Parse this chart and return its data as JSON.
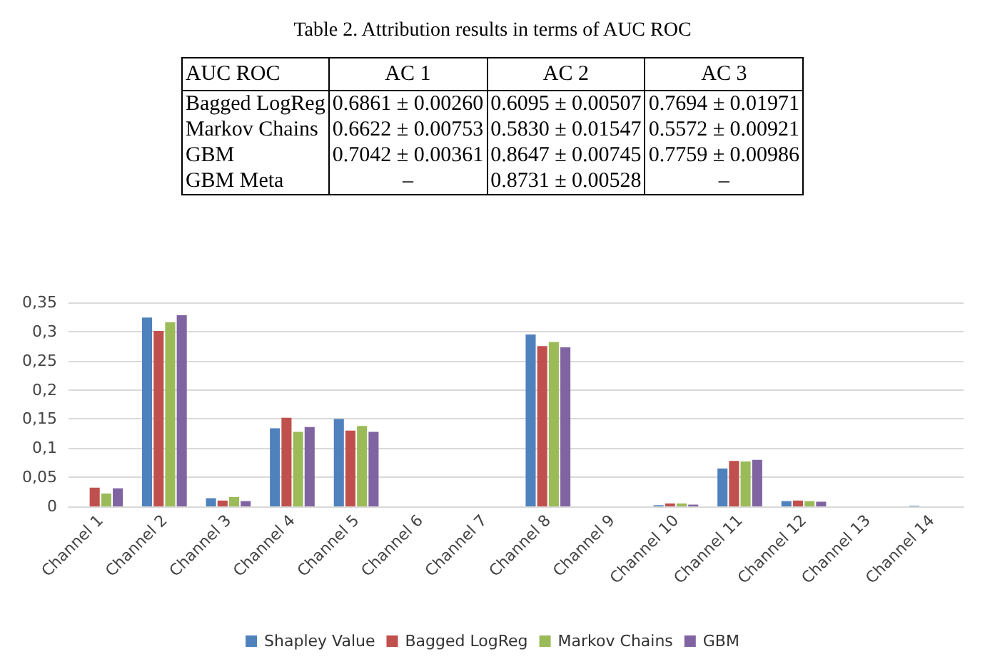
{
  "chart_data": [
    {
      "type": "other",
      "title": "Table 2. Attribution results in terms of AUC ROC",
      "ylabel": "AUC ROC",
      "categories": [
        "AC 1",
        "AC 2",
        "AC 3"
      ],
      "y_categories": [
        "Bagged LogReg",
        "Markov Chains",
        "GBM",
        "GBM Meta"
      ],
      "cell_labels": [
        [
          "0.6861 ± 0.00260",
          "0.6095 ± 0.00507",
          "0.7694 ± 0.01971"
        ],
        [
          "0.6622 ± 0.00753",
          "0.5830 ± 0.01547",
          "0.5572 ± 0.00921"
        ],
        [
          "0.7042 ± 0.00361",
          "0.8647 ± 0.00745",
          "0.7759 ± 0.00986"
        ],
        [
          "–",
          "0.8731 ± 0.00528",
          "–"
        ]
      ]
    },
    {
      "type": "bar",
      "categories": [
        "Channel 1",
        "Channel 2",
        "Channel 3",
        "Channel 4",
        "Channel 5",
        "Channel 6",
        "Channel 7",
        "Channel 8",
        "Channel 9",
        "Channel 10",
        "Channel 11",
        "Channel 12",
        "Channel 13",
        "Channel 14"
      ],
      "series": [
        {
          "name": "Shapley Value",
          "color": "#4f81bd",
          "values": [
            0,
            0.324,
            0.014,
            0.134,
            0.15,
            0,
            0,
            0.295,
            0,
            0.002,
            0.065,
            0.009,
            0,
            0.001
          ]
        },
        {
          "name": "Bagged LogReg",
          "color": "#c0504d",
          "values": [
            0.032,
            0.301,
            0.01,
            0.152,
            0.13,
            0,
            0,
            0.275,
            0,
            0.005,
            0.078,
            0.01,
            0,
            0
          ]
        },
        {
          "name": "Markov Chains",
          "color": "#9bbb59",
          "values": [
            0.022,
            0.316,
            0.016,
            0.128,
            0.138,
            0,
            0,
            0.282,
            0,
            0.005,
            0.077,
            0.009,
            0,
            0
          ]
        },
        {
          "name": "GBM",
          "color": "#8064a2",
          "values": [
            0.031,
            0.328,
            0.009,
            0.136,
            0.128,
            0,
            0,
            0.273,
            0,
            0.003,
            0.08,
            0.008,
            0,
            0
          ]
        }
      ],
      "ylim": [
        0,
        0.35
      ],
      "yticks": [
        {
          "value": 0,
          "label": "0"
        },
        {
          "value": 0.05,
          "label": "0,05"
        },
        {
          "value": 0.1,
          "label": "0,1"
        },
        {
          "value": 0.15,
          "label": "0,15"
        },
        {
          "value": 0.2,
          "label": "0,2"
        },
        {
          "value": 0.25,
          "label": "0,25"
        },
        {
          "value": 0.3,
          "label": "0,3"
        },
        {
          "value": 0.35,
          "label": "0,35"
        }
      ],
      "grid": "y",
      "legend": "bottom"
    }
  ]
}
